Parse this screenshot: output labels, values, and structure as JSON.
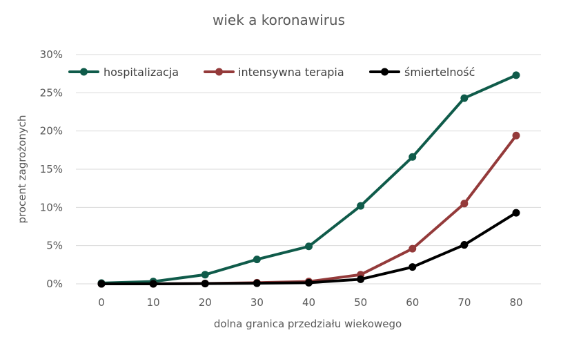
{
  "chart_data": {
    "type": "line",
    "title": "wiek a koronawirus",
    "xlabel": "dolna granica przedziału wiekowego",
    "ylabel": "procent zagrożonych",
    "x": [
      0,
      10,
      20,
      30,
      40,
      50,
      60,
      70,
      80
    ],
    "x_tick_labels": [
      "0",
      "10",
      "20",
      "30",
      "40",
      "50",
      "60",
      "70",
      "80"
    ],
    "ylim": [
      0,
      30
    ],
    "y_ticks": [
      0,
      5,
      10,
      15,
      20,
      25,
      30
    ],
    "y_tick_labels": [
      "0%",
      "5%",
      "10%",
      "15%",
      "20%",
      "25%",
      "30%"
    ],
    "grid": "horizontal",
    "legend_position": "top",
    "series": [
      {
        "name": "hospitalizacja",
        "color": "#0f5b4a",
        "values": [
          0.1,
          0.3,
          1.2,
          3.2,
          4.9,
          10.2,
          16.6,
          24.3,
          27.3
        ]
      },
      {
        "name": "intensywna terapia",
        "color": "#943a3a",
        "values": [
          0.0,
          0.0,
          0.05,
          0.15,
          0.3,
          1.2,
          4.6,
          10.5,
          19.4
        ]
      },
      {
        "name": "śmiertelność",
        "color": "#000000",
        "values": [
          0.0,
          0.0,
          0.03,
          0.08,
          0.15,
          0.6,
          2.2,
          5.1,
          9.3
        ]
      }
    ]
  }
}
